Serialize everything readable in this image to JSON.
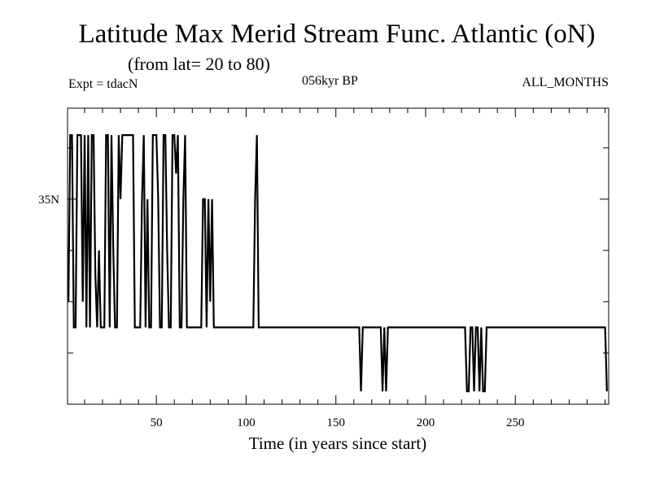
{
  "chart_data": {
    "type": "line",
    "title": "Latitude Max Merid Stream Func. Atlantic (oN)",
    "subtitle": "(from lat= 20 to 80)",
    "annotations": {
      "left": "Expt = tdacN",
      "center": "056kyr BP",
      "right": "ALL_MONTHS"
    },
    "xlabel": "Time (in years since start)",
    "ylabel": "",
    "xlim": [
      0.5,
      302
    ],
    "ylim": [
      27,
      38.55
    ],
    "x_ticks_major": [
      50,
      100,
      150,
      200,
      250
    ],
    "x_tick_labels": [
      "50",
      "100",
      "150",
      "200",
      "250"
    ],
    "x_ticks_minor_step": 10,
    "y_ticks": [
      29,
      31,
      33,
      35,
      37
    ],
    "y_tick_labels": [
      {
        "value": 35,
        "label": "35N"
      }
    ],
    "grid": false,
    "x_start": 1,
    "x_step": 1,
    "values": [
      31,
      37.5,
      37.5,
      30,
      30,
      37.5,
      37.5,
      37.5,
      31,
      37.5,
      30,
      37.5,
      30,
      37.5,
      37.5,
      32,
      30,
      33,
      30,
      30,
      30,
      37.5,
      37.5,
      30,
      37.5,
      33,
      30,
      30,
      37.5,
      35,
      37.5,
      37.5,
      37.5,
      37.5,
      37.5,
      37.5,
      37.5,
      30,
      30,
      30,
      30,
      35,
      37.5,
      30,
      35,
      30,
      30,
      37.5,
      37.5,
      37.5,
      35,
      30,
      30,
      37.5,
      37.5,
      33,
      30,
      30,
      37.5,
      37.5,
      36,
      37.5,
      30,
      30,
      35,
      37.5,
      30,
      30,
      30,
      30,
      30,
      30,
      30,
      30,
      30,
      35,
      35,
      30,
      35,
      31,
      35,
      30,
      30,
      30,
      30,
      30,
      30,
      30,
      30,
      30,
      30,
      30,
      30,
      30,
      30,
      30,
      30,
      30,
      30,
      30,
      30,
      30,
      30,
      30,
      35,
      37.5,
      30,
      30,
      30,
      30,
      30,
      30,
      30,
      30,
      30,
      30,
      30,
      30,
      30,
      30,
      30,
      30,
      30,
      30,
      30,
      30,
      30,
      30,
      30,
      30,
      30,
      30,
      30,
      30,
      30,
      30,
      30,
      30,
      30,
      30,
      30,
      30,
      30,
      30,
      30,
      30,
      30,
      30,
      30,
      30,
      30,
      30,
      30,
      30,
      30,
      30,
      30,
      30,
      30,
      30,
      30,
      30,
      30,
      27.5,
      30,
      30,
      30,
      30,
      30,
      30,
      30,
      30,
      30,
      30,
      30,
      27.5,
      30,
      27.5,
      30,
      30,
      30,
      30,
      30,
      30,
      30,
      30,
      30,
      30,
      30,
      30,
      30,
      30,
      30,
      30,
      30,
      30,
      30,
      30,
      30,
      30,
      30,
      30,
      30,
      30,
      30,
      30,
      30,
      30,
      30,
      30,
      30,
      30,
      30,
      30,
      30,
      30,
      30,
      30,
      30,
      30,
      30,
      30,
      27.5,
      27.5,
      30,
      30,
      27.5,
      30,
      30,
      27.5,
      30,
      27.5,
      27.5,
      30,
      30,
      30,
      30,
      30,
      30,
      30,
      30,
      30,
      30,
      30,
      30,
      30,
      30,
      30,
      30,
      30,
      30,
      30,
      30,
      30,
      30,
      30,
      30,
      30,
      30,
      30,
      30,
      30,
      30,
      30,
      30,
      30,
      30,
      30,
      30,
      30,
      30,
      30,
      30,
      30,
      30,
      30,
      30,
      30,
      30,
      30,
      30,
      30,
      30,
      30,
      30,
      30,
      30,
      30,
      30,
      30,
      30,
      30,
      30,
      30,
      30,
      30,
      30,
      30,
      30,
      30,
      27.5
    ],
    "line_color": "#000000"
  }
}
